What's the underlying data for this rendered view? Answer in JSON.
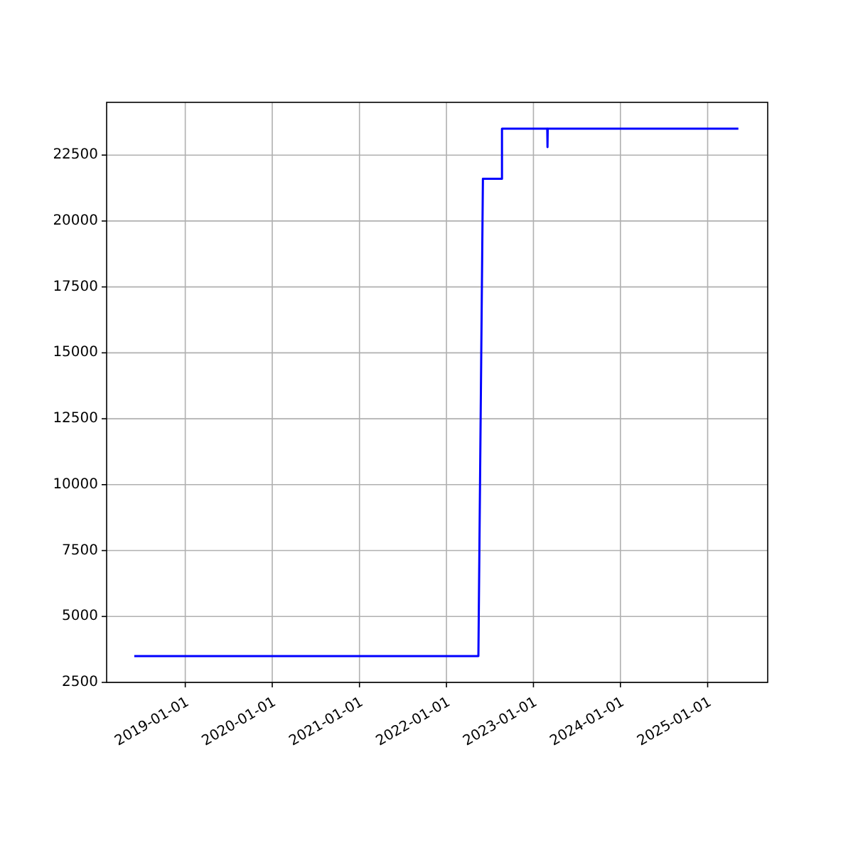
{
  "chart_data": {
    "type": "line",
    "x": [
      "2018-06-01",
      "2022-05-15",
      "2022-06-03",
      "2022-08-22",
      "2022-08-22",
      "2023-02-28",
      "2023-03-01",
      "2023-03-02",
      "2025-05-10"
    ],
    "series": [
      {
        "color": "#0000ff",
        "values": [
          3500,
          3500,
          21600,
          21600,
          23500,
          23500,
          22800,
          23500,
          23500
        ]
      }
    ],
    "xlim": [
      "2018-02-05",
      "2025-09-10"
    ],
    "xticks": [
      {
        "value": "2019-01-01",
        "label": "2019-01-01"
      },
      {
        "value": "2020-01-01",
        "label": "2020-01-01"
      },
      {
        "value": "2021-01-01",
        "label": "2021-01-01"
      },
      {
        "value": "2022-01-01",
        "label": "2022-01-01"
      },
      {
        "value": "2023-01-01",
        "label": "2023-01-01"
      },
      {
        "value": "2024-01-01",
        "label": "2024-01-01"
      },
      {
        "value": "2025-01-01",
        "label": "2025-01-01"
      }
    ],
    "ylim": [
      2500,
      24500
    ],
    "yticks": [
      2500,
      5000,
      7500,
      10000,
      12500,
      15000,
      17500,
      20000,
      22500
    ],
    "grid": true,
    "line_style": "solid"
  }
}
